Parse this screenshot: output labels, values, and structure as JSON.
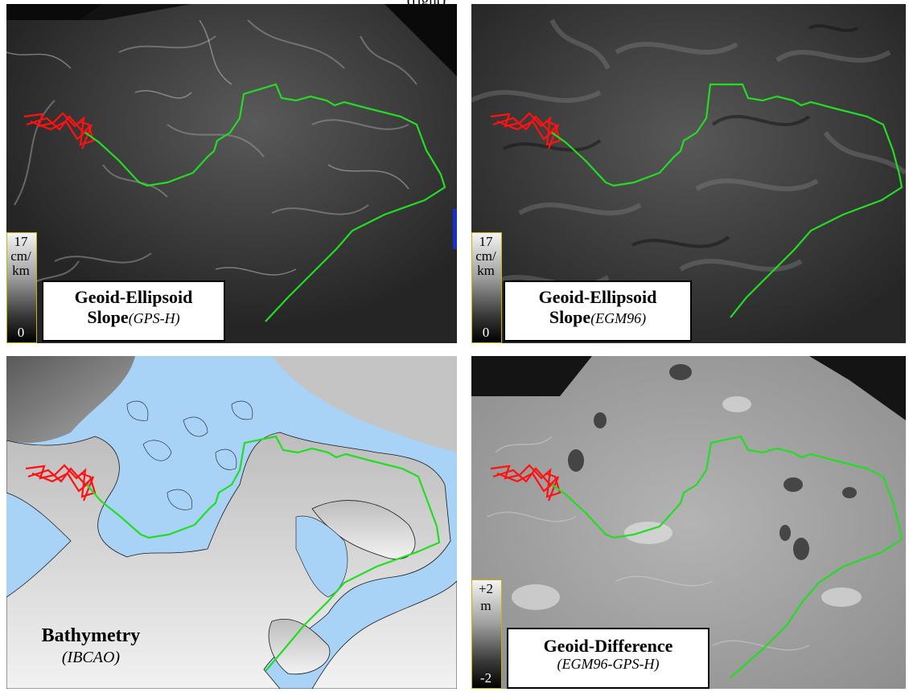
{
  "caption": "(right)",
  "panels": {
    "top_left": {
      "title": "Geoid-Ellipsoid",
      "title_line2": "Slope",
      "source": "(GPS-H)",
      "colorbar": {
        "max": "17",
        "unit_line1": "cm/",
        "unit_line2": "km",
        "min": "0"
      }
    },
    "top_right": {
      "title": "Geoid-Ellipsoid",
      "title_line2": "Slope",
      "source": "(EGM96)",
      "colorbar": {
        "max": "17",
        "unit_line1": "cm/",
        "unit_line2": "km",
        "min": "0"
      }
    },
    "bottom_left": {
      "title": "Bathymetry",
      "source": "(IBCAO)"
    },
    "bottom_right": {
      "title": "Geoid-Difference",
      "source": "(EGM96-GPS-H)",
      "colorbar": {
        "max": "+2",
        "unit": "m",
        "min": "-2"
      }
    }
  },
  "colors": {
    "route": "#22dd22",
    "network": "#ff1111",
    "ocean": "#a9d2f7",
    "dark_panel": "#141414",
    "border": "#000000"
  }
}
